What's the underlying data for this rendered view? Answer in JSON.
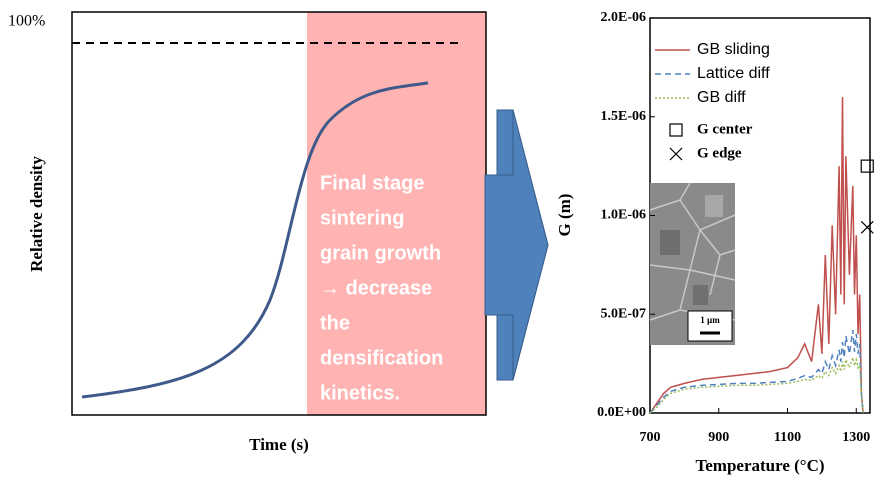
{
  "schematic": {
    "y_label": "Relative density",
    "x_label": "Time (s)",
    "reference_label": "100%",
    "annotation": [
      "Final stage",
      "sintering",
      "grain growth",
      "→ decrease",
      "the",
      "densification",
      "kinetics."
    ]
  },
  "chart_data": {
    "type": "line",
    "y_label": "G (m)",
    "x_label": "Temperature (°C)",
    "inset_scale": "1 µm",
    "xlim": [
      700,
      1340
    ],
    "xticks": [
      700,
      900,
      1100,
      1300
    ],
    "ylim": [
      0,
      2e-06
    ],
    "yticks": [
      {
        "value": 0,
        "label": "0.0E+00"
      },
      {
        "value": 5e-07,
        "label": "5.0E-07"
      },
      {
        "value": 1e-06,
        "label": "1.0E-06"
      },
      {
        "value": 1.5e-06,
        "label": "1.5E-06"
      },
      {
        "value": 2e-06,
        "label": "2.0E-06"
      }
    ],
    "x": [
      700,
      720,
      740,
      760,
      780,
      800,
      850,
      900,
      950,
      1000,
      1050,
      1100,
      1130,
      1150,
      1170,
      1190,
      1200,
      1210,
      1220,
      1230,
      1240,
      1250,
      1255,
      1260,
      1265,
      1270,
      1280,
      1290,
      1295,
      1300,
      1305,
      1310,
      1315,
      1320
    ],
    "series": [
      {
        "name": "GB sliding",
        "color": "#c0504d",
        "style": "solid",
        "values": [
          0,
          5e-08,
          1e-07,
          1.3e-07,
          1.4e-07,
          1.5e-07,
          1.7e-07,
          1.8e-07,
          1.9e-07,
          2e-07,
          2.1e-07,
          2.3e-07,
          2.8e-07,
          3.5e-07,
          2.6e-07,
          5.5e-07,
          3e-07,
          8e-07,
          3.5e-07,
          9.5e-07,
          5e-07,
          1.25e-06,
          6e-07,
          1.6e-06,
          5.5e-07,
          1.3e-06,
          7e-07,
          1.15e-06,
          6e-07,
          9e-07,
          4e-07,
          6e-07,
          1e-07,
          0
        ]
      },
      {
        "name": "Lattice diff",
        "color": "#4f81bd",
        "style": "dashed",
        "values": [
          0,
          4e-08,
          8e-08,
          1.1e-07,
          1.2e-07,
          1.3e-07,
          1.4e-07,
          1.45e-07,
          1.5e-07,
          1.5e-07,
          1.55e-07,
          1.6e-07,
          1.75e-07,
          1.9e-07,
          1.8e-07,
          2.2e-07,
          2e-07,
          2.6e-07,
          2.2e-07,
          2.9e-07,
          2.4e-07,
          3.2e-07,
          2.6e-07,
          3.6e-07,
          2.8e-07,
          3.9e-07,
          3e-07,
          4.2e-07,
          3.1e-07,
          4e-07,
          3e-07,
          3.5e-07,
          1e-07,
          0
        ]
      },
      {
        "name": "GB diff",
        "color": "#9bbb59",
        "style": "dotted",
        "values": [
          0,
          3e-08,
          7e-08,
          1e-07,
          1.1e-07,
          1.2e-07,
          1.3e-07,
          1.35e-07,
          1.4e-07,
          1.4e-07,
          1.45e-07,
          1.5e-07,
          1.6e-07,
          1.7e-07,
          1.65e-07,
          1.9e-07,
          1.75e-07,
          2.1e-07,
          1.9e-07,
          2.3e-07,
          2e-07,
          2.4e-07,
          2.1e-07,
          2.6e-07,
          2.2e-07,
          2.7e-07,
          2.3e-07,
          2.8e-07,
          2.4e-07,
          2.7e-07,
          2.3e-07,
          2.5e-07,
          8e-08,
          0
        ]
      }
    ],
    "points": [
      {
        "name": "G center",
        "marker": "square",
        "color": "#000000",
        "x": 1332,
        "y": 1.25e-06
      },
      {
        "name": "G edge",
        "marker": "cross",
        "color": "#000000",
        "x": 1332,
        "y": 9.4e-07
      }
    ]
  }
}
